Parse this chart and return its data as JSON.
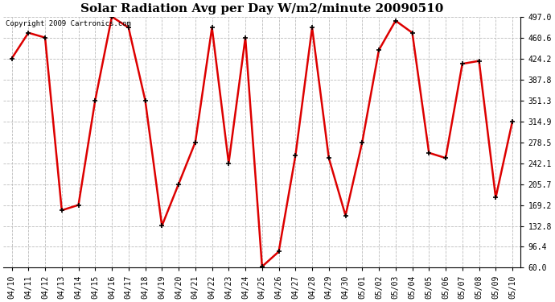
{
  "title": "Solar Radiation Avg per Day W/m2/minute 20090510",
  "copyright_text": "Copyright 2009 Cartronics.com",
  "dates": [
    "04/10",
    "04/11",
    "04/12",
    "04/13",
    "04/14",
    "04/15",
    "04/16",
    "04/17",
    "04/18",
    "04/19",
    "04/20",
    "04/21",
    "04/22",
    "04/23",
    "04/24",
    "04/25",
    "04/26",
    "04/27",
    "04/28",
    "04/29",
    "04/30",
    "05/01",
    "05/02",
    "05/03",
    "05/04",
    "05/05",
    "05/06",
    "05/07",
    "05/08",
    "05/09",
    "05/10"
  ],
  "values": [
    424.2,
    469.0,
    460.6,
    160.0,
    169.2,
    351.3,
    497.0,
    478.0,
    351.3,
    133.0,
    205.7,
    278.5,
    478.0,
    242.1,
    460.6,
    62.0,
    88.0,
    255.0,
    478.0,
    251.0,
    151.0,
    278.5,
    439.0,
    490.0,
    469.0,
    260.0,
    251.0,
    415.0,
    420.0,
    182.0,
    315.0
  ],
  "ylim": [
    60.0,
    497.0
  ],
  "yticks": [
    60.0,
    96.4,
    132.8,
    169.2,
    205.7,
    242.1,
    278.5,
    314.9,
    351.3,
    387.8,
    424.2,
    460.6,
    497.0
  ],
  "line_color": "#dd0000",
  "marker_color": "#000000",
  "bg_color": "#ffffff",
  "grid_color": "#bbbbbb",
  "title_fontsize": 11,
  "copyright_fontsize": 6.5,
  "tick_fontsize": 7,
  "marker_size": 4
}
